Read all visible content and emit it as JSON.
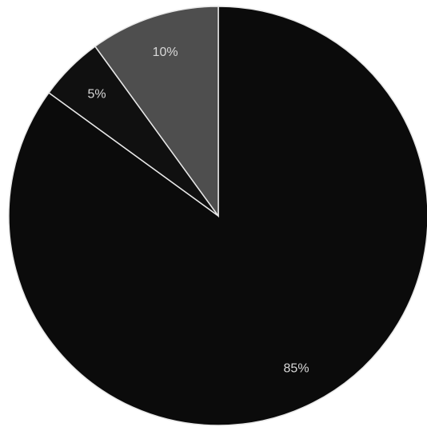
{
  "chart_data": {
    "type": "pie",
    "values": [
      85,
      5,
      10
    ],
    "value_labels": [
      "85%",
      "5%",
      "10%"
    ],
    "colors": [
      "#0b0b0b",
      "#101010",
      "#4e4e4e"
    ],
    "start_angle": 0,
    "direction": "clockwise"
  }
}
